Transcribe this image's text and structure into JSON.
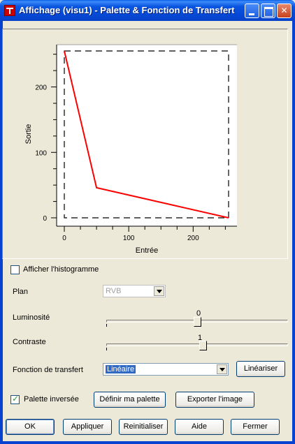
{
  "window": {
    "title": "Affichage (visu1) - Palette & Fonction de Transfert",
    "icon": "app-icon",
    "controls": [
      "minimize-icon",
      "maximize-icon",
      "close-icon"
    ]
  },
  "chart_data": {
    "type": "line",
    "xlabel": "Entrée",
    "ylabel": "Sortie",
    "xlim": [
      0,
      255
    ],
    "ylim": [
      0,
      255
    ],
    "xticks": [
      "0",
      "100",
      "200"
    ],
    "yticks": [
      "0",
      "100",
      "200"
    ],
    "series": [
      {
        "x": [
          0,
          50,
          255
        ],
        "y": [
          255,
          46,
          0
        ],
        "color": "#FF0000"
      }
    ],
    "bounding_box": {
      "x": [
        0,
        255
      ],
      "y": [
        0,
        255
      ],
      "style": "dashed",
      "color": "#000000"
    }
  },
  "histogram": {
    "label": "Afficher l'histogramme",
    "checked": false
  },
  "plan": {
    "label": "Plan",
    "value": "RVB",
    "disabled": true
  },
  "luminosite": {
    "label": "Luminosité",
    "value": "0",
    "position": 0.5
  },
  "contraste": {
    "label": "Contraste",
    "value": "1",
    "position": 0.53
  },
  "fonction": {
    "label": "Fonction de transfert",
    "value": "Linéaire",
    "button": "Linéariser"
  },
  "palette": {
    "label": "Palette inversée",
    "checked": true,
    "define_button": "Définir ma palette",
    "export_button": "Exporter l'image"
  },
  "footer": {
    "ok": "OK",
    "apply": "Appliquer",
    "reset": "Reinitialiser",
    "help": "Aide",
    "close": "Fermer"
  }
}
